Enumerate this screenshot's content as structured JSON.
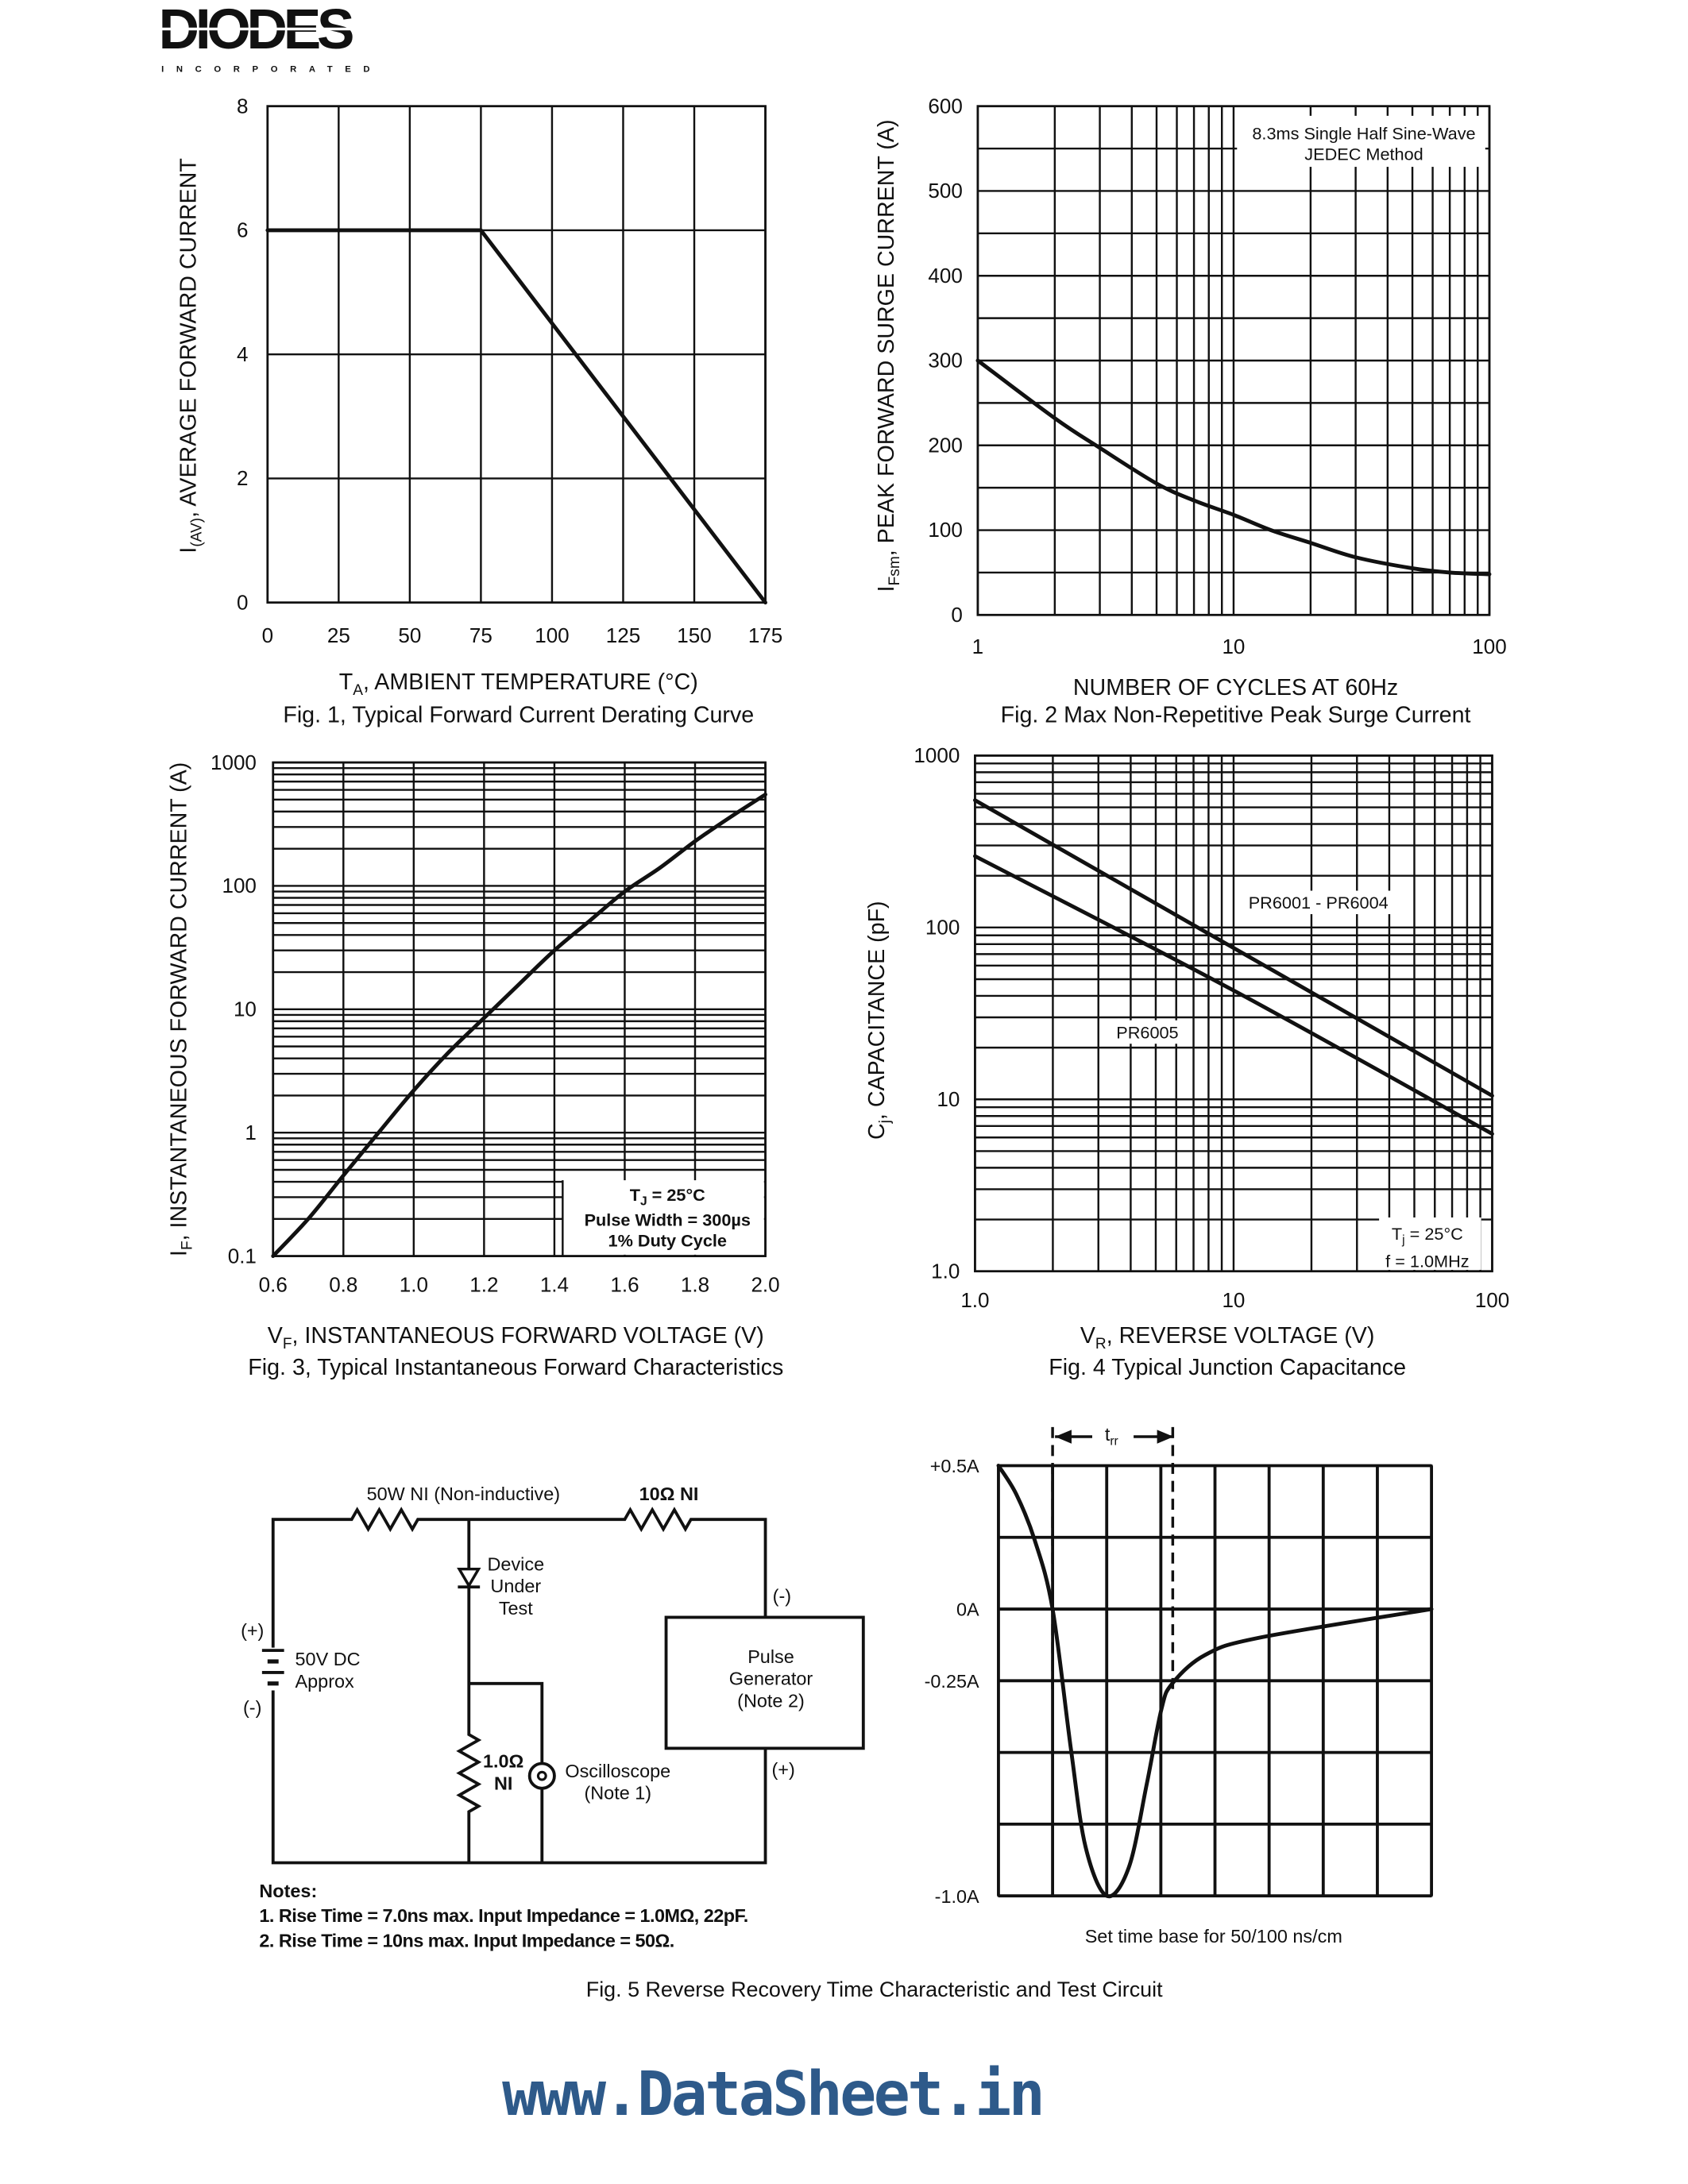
{
  "logo": {
    "name": "DIODES",
    "tagline": "INCORPORATED"
  },
  "watermark": {
    "text": "www.DataSheet.in",
    "color": "#2e5a8a"
  },
  "fig1": {
    "ylabel": {
      "main": "I",
      "sub": "(AV)",
      "rest": ", AVERAGE FORWARD CURRENT"
    },
    "xlabel": {
      "main": "T",
      "sub": "A",
      "rest": ", AMBIENT TEMPERATURE (°C)"
    },
    "caption": "Fig. 1,  Typical Forward Current Derating Curve"
  },
  "fig2": {
    "ylabel": {
      "main": "I",
      "sub": "Fsm",
      "rest": ", PEAK FORWARD SURGE CURRENT (A)"
    },
    "xlabel": "NUMBER OF CYCLES AT 60Hz",
    "caption": "Fig. 2  Max Non-Repetitive Peak Surge Current",
    "note_line1": "8.3ms Single Half Sine-Wave",
    "note_line2": "JEDEC Method"
  },
  "fig3": {
    "ylabel": {
      "main": "I",
      "sub": "F",
      "rest": ", INSTANTANEOUS FORWARD CURRENT (A)"
    },
    "xlabel": {
      "main": "V",
      "sub": "F",
      "rest": ", INSTANTANEOUS FORWARD VOLTAGE (V)"
    },
    "caption": "Fig. 3,  Typical Instantaneous Forward Characteristics",
    "cond_tj_main": "T",
    "cond_tj_sub": "J",
    "cond_tj_rest": " = 25°C",
    "cond_pulse": "Pulse Width = 300µs",
    "cond_duty": "1% Duty Cycle"
  },
  "fig4": {
    "ylabel": {
      "main": "C",
      "sub": "j",
      "rest": ",  CAPACITANCE (pF)"
    },
    "xlabel": {
      "main": "V",
      "sub": "R",
      "rest": ", REVERSE VOLTAGE (V)"
    },
    "caption": "Fig. 4  Typical Junction Capacitance",
    "series_label_1": "PR6001 - PR6004",
    "series_label_2": "PR6005",
    "cond_tj_main": "T",
    "cond_tj_sub": "j",
    "cond_tj_rest": " = 25°C",
    "cond_f": "f = 1.0MHz"
  },
  "fig5": {
    "caption": "Fig. 5  Reverse Recovery Time Characteristic and Test Circuit",
    "trr_main": "t",
    "trr_sub": "rr",
    "timebase": "Set time base for 50/100 ns/cm",
    "circuit": {
      "r1_label": "50W NI (Non-inductive)",
      "r2_label": "10Ω NI",
      "dut_line1": "Device",
      "dut_line2": "Under",
      "dut_line3": "Test",
      "battery_plus": "(+)",
      "battery_minus": "(-)",
      "battery_line1": "50V DC",
      "battery_line2": "Approx",
      "r3_line1": "1.0Ω",
      "r3_line2": "NI",
      "scope_line1": "Oscilloscope",
      "scope_line2": "(Note 1)",
      "gen_line1": "Pulse",
      "gen_line2": "Generator",
      "gen_line3": "(Note 2)",
      "gen_minus": "(-)",
      "gen_plus": "(+)"
    },
    "notes": {
      "heading": "Notes:",
      "note1": "1. Rise Time = 7.0ns max. Input Impedance = 1.0MΩ, 22pF.",
      "note2": "2. Rise Time = 10ns max. Input Impedance = 50Ω."
    }
  },
  "chart_data": [
    {
      "id": "fig1",
      "type": "line",
      "grid": true,
      "xscale": "linear",
      "yscale": "linear",
      "xlim": [
        0,
        175
      ],
      "ylim": [
        0,
        8
      ],
      "xticks": [
        0,
        25,
        50,
        75,
        100,
        125,
        150,
        175
      ],
      "xtick_labels": [
        "0",
        "25",
        "50",
        "75",
        "100",
        "125",
        "150",
        "175"
      ],
      "yticks": [
        0,
        2,
        4,
        6,
        8
      ],
      "ytick_labels": [
        "0",
        "2",
        "4",
        "6",
        "8"
      ],
      "xgrid_step": 25,
      "ygrid_step": 2,
      "series": [
        {
          "x": [
            0,
            75,
            175
          ],
          "y": [
            6,
            6,
            0
          ]
        }
      ]
    },
    {
      "id": "fig2",
      "type": "line",
      "grid": true,
      "xscale": "log",
      "yscale": "linear",
      "xlim": [
        1,
        100
      ],
      "ylim": [
        0,
        600
      ],
      "xticks": [
        1,
        10,
        100
      ],
      "xtick_labels": [
        "1",
        "10",
        "100"
      ],
      "yticks": [
        0,
        100,
        200,
        300,
        400,
        500,
        600
      ],
      "ytick_labels": [
        "0",
        "100",
        "200",
        "300",
        "400",
        "500",
        "600"
      ],
      "ygrid_step": 50,
      "series": [
        {
          "x": [
            1,
            2,
            3,
            5,
            7,
            10,
            14,
            20,
            30,
            50,
            70,
            100
          ],
          "y": [
            300,
            232,
            197,
            155,
            135,
            118,
            100,
            85,
            68,
            55,
            50,
            48
          ]
        }
      ]
    },
    {
      "id": "fig3",
      "type": "line",
      "grid": true,
      "xscale": "linear",
      "yscale": "log",
      "xlim": [
        0.6,
        2.0
      ],
      "ylim": [
        0.1,
        1000
      ],
      "xticks": [
        0.6,
        0.8,
        1.0,
        1.2,
        1.4,
        1.6,
        1.8,
        2.0
      ],
      "xtick_labels": [
        "0.6",
        "0.8",
        "1.0",
        "1.2",
        "1.4",
        "1.6",
        "1.8",
        "2.0"
      ],
      "yticks": [
        0.1,
        1,
        10,
        100,
        1000
      ],
      "ytick_labels": [
        "0.1",
        "1",
        "10",
        "100",
        "1000"
      ],
      "xgrid_step": 0.2,
      "series": [
        {
          "x": [
            0.6,
            0.7,
            0.8,
            0.9,
            1.0,
            1.1,
            1.2,
            1.3,
            1.4,
            1.5,
            1.6,
            1.7,
            1.8,
            1.9,
            2.0
          ],
          "y": [
            0.1,
            0.2,
            0.45,
            1.0,
            2.2,
            4.5,
            8.5,
            16,
            30,
            52,
            90,
            140,
            230,
            360,
            550
          ]
        }
      ]
    },
    {
      "id": "fig4",
      "type": "line",
      "grid": true,
      "xscale": "log",
      "yscale": "log",
      "xlim": [
        1,
        100
      ],
      "ylim": [
        1,
        1000
      ],
      "xticks": [
        1,
        10,
        100
      ],
      "xtick_labels": [
        "1.0",
        "10",
        "100"
      ],
      "yticks": [
        1,
        10,
        100,
        1000
      ],
      "ytick_labels": [
        "1.0",
        "10",
        "100",
        "1000"
      ],
      "series": [
        {
          "name": "PR6001 - PR6004",
          "x": [
            1,
            10,
            100
          ],
          "y": [
            550,
            76,
            10.5
          ]
        },
        {
          "name": "PR6005",
          "x": [
            1,
            10,
            100
          ],
          "y": [
            260,
            43,
            6.3
          ]
        }
      ]
    },
    {
      "id": "fig5",
      "type": "line",
      "grid": true,
      "xscale": "linear",
      "yscale": "linear",
      "xlim": [
        0,
        8
      ],
      "ylim": [
        -1.0,
        0.5
      ],
      "xgrid_step": 1,
      "ygrid_step": 0.25,
      "yticks": [
        0.5,
        0,
        -0.25,
        -1.0
      ],
      "ytick_labels": [
        "+0.5A",
        "0A",
        "-0.25A",
        "-1.0A"
      ],
      "trr_markers": [
        1.0,
        3.22
      ],
      "series": [
        {
          "x": [
            0,
            0.33,
            0.67,
            1.0,
            1.34,
            1.61,
            2.0,
            2.41,
            2.74,
            3.01,
            3.21,
            3.82,
            4.82,
            8
          ],
          "y": [
            0.5,
            0.4,
            0.24,
            0,
            -0.49,
            -0.83,
            -1.0,
            -0.9,
            -0.61,
            -0.35,
            -0.26,
            -0.16,
            -0.1,
            0
          ]
        }
      ]
    }
  ]
}
